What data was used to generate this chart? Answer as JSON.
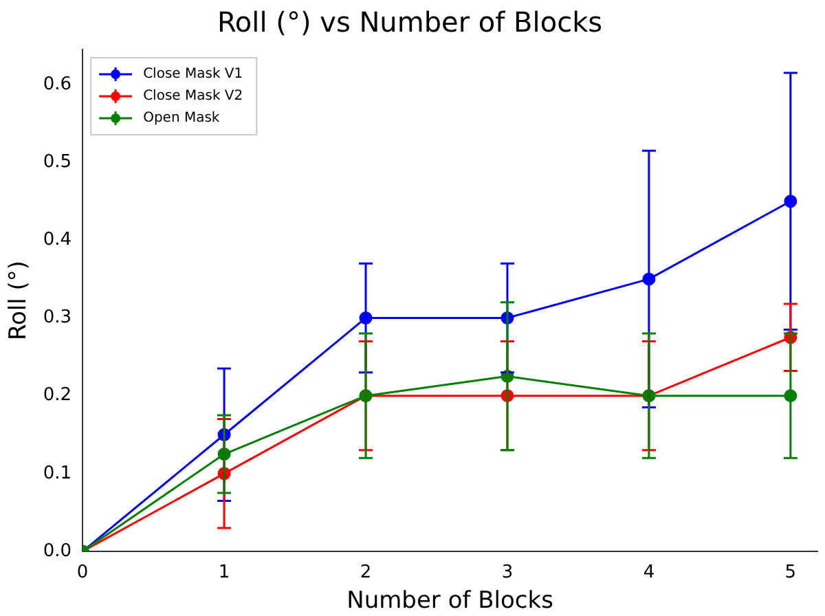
{
  "chart_data": {
    "type": "line",
    "title": "Roll (°) vs Number of Blocks",
    "xlabel": "Number of Blocks",
    "ylabel": "Roll (°)",
    "x": [
      0,
      1,
      2,
      3,
      4,
      5
    ],
    "xlim": [
      0,
      5.19
    ],
    "xticks": [
      0,
      1,
      2,
      3,
      4,
      5
    ],
    "ylim": [
      0,
      0.645
    ],
    "yticks": [
      {
        "value": 0,
        "label": "0.0"
      },
      {
        "value": 0.1,
        "label": "0.1"
      },
      {
        "value": 0.2,
        "label": "0.2"
      },
      {
        "value": 0.3,
        "label": "0.3"
      },
      {
        "value": 0.4,
        "label": "0.4"
      },
      {
        "value": 0.5,
        "label": "0.5"
      },
      {
        "value": 0.6,
        "label": "0.6"
      }
    ],
    "series": [
      {
        "name": "Close Mask V1",
        "color": "#0000ff",
        "values": [
          0,
          0.15,
          0.3,
          0.3,
          0.35,
          0.45
        ],
        "errors": [
          null,
          0.085,
          0.07,
          0.07,
          0.165,
          0.165
        ]
      },
      {
        "name": "Close Mask V2",
        "color": "#ff0000",
        "values": [
          0,
          0.1,
          0.2,
          0.2,
          0.2,
          0.275
        ],
        "errors": [
          null,
          0.07,
          0.07,
          0.07,
          0.07,
          0.043
        ]
      },
      {
        "name": "Open Mask",
        "color": "#008000",
        "values": [
          0,
          0.125,
          0.2,
          0.225,
          0.2,
          0.2
        ],
        "errors": [
          null,
          0.05,
          0.08,
          0.095,
          0.08,
          0.08
        ]
      }
    ],
    "marker": "circle",
    "line_style": "solid",
    "legend": "top left",
    "grid": false
  }
}
